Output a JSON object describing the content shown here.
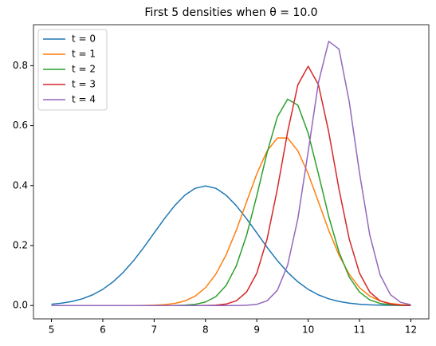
{
  "chart_data": {
    "type": "line",
    "title": "First 5 densities when θ = 10.0",
    "x": [
      5.0,
      5.2,
      5.4,
      5.6,
      5.8,
      6.0,
      6.2,
      6.4,
      6.6,
      6.8,
      7.0,
      7.2,
      7.4,
      7.6,
      7.8,
      8.0,
      8.2,
      8.4,
      8.6,
      8.8,
      9.0,
      9.2,
      9.4,
      9.6,
      9.8,
      10.0,
      10.2,
      10.4,
      10.6,
      10.8,
      11.0,
      11.2,
      11.4,
      11.6,
      11.8,
      12.0
    ],
    "series": [
      {
        "name": "t = 0",
        "color": "#1f77b4",
        "values": [
          0.0044,
          0.0079,
          0.0136,
          0.0224,
          0.0355,
          0.054,
          0.079,
          0.1109,
          0.1497,
          0.1942,
          0.242,
          0.2897,
          0.3332,
          0.3683,
          0.391,
          0.3989,
          0.391,
          0.3683,
          0.3332,
          0.2897,
          0.242,
          0.1942,
          0.1497,
          0.1109,
          0.079,
          0.054,
          0.0355,
          0.0224,
          0.0136,
          0.0079,
          0.0044,
          0.0024,
          0.0012,
          0.0006,
          0.0003,
          0.0001
        ]
      },
      {
        "name": "t = 1",
        "color": "#ff7f0e",
        "values": [
          0,
          0,
          0,
          0,
          0,
          0,
          0,
          0,
          0.0001,
          0.0004,
          0.0011,
          0.0028,
          0.0069,
          0.0153,
          0.0314,
          0.0595,
          0.1041,
          0.1682,
          0.251,
          0.3456,
          0.4394,
          0.5156,
          0.5586,
          0.5586,
          0.5156,
          0.4394,
          0.3456,
          0.251,
          0.1682,
          0.1041,
          0.0595,
          0.0314,
          0.0153,
          0.0069,
          0.0028,
          0.0011
        ]
      },
      {
        "name": "t = 2",
        "color": "#2ca02c",
        "values": [
          0,
          0,
          0,
          0,
          0,
          0,
          0,
          0,
          0,
          0,
          0,
          0.0001,
          0.0003,
          0.0013,
          0.0041,
          0.0116,
          0.0295,
          0.0663,
          0.1322,
          0.2338,
          0.3666,
          0.51,
          0.629,
          0.6884,
          0.6681,
          0.5749,
          0.4389,
          0.2971,
          0.1784,
          0.095,
          0.0449,
          0.0188,
          0.007,
          0.0023,
          0.0007,
          0.0002
        ]
      },
      {
        "name": "t = 3",
        "color": "#d62728",
        "values": [
          0,
          0,
          0,
          0,
          0,
          0,
          0,
          0,
          0,
          0,
          0,
          0,
          0,
          0,
          0,
          0.0003,
          0.0012,
          0.0048,
          0.0158,
          0.0448,
          0.108,
          0.2218,
          0.3884,
          0.5794,
          0.7365,
          0.7979,
          0.7365,
          0.5794,
          0.3884,
          0.2218,
          0.108,
          0.0448,
          0.0158,
          0.0048,
          0.0012,
          0.0003
        ]
      },
      {
        "name": "t = 4",
        "color": "#9467bd",
        "values": [
          0,
          0,
          0,
          0,
          0,
          0,
          0,
          0,
          0,
          0,
          0,
          0,
          0,
          0,
          0,
          0,
          0,
          0,
          0.0001,
          0.0008,
          0.004,
          0.0158,
          0.051,
          0.1345,
          0.2905,
          0.5136,
          0.7437,
          0.8812,
          0.8553,
          0.6796,
          0.4421,
          0.2354,
          0.1027,
          0.0366,
          0.0107,
          0.0026
        ]
      }
    ],
    "xlim": [
      4.65,
      12.35
    ],
    "xticks": [
      5,
      6,
      7,
      8,
      9,
      10,
      11,
      12
    ],
    "ylim": [
      -0.0446,
      0.9366
    ],
    "yticks": [
      {
        "value": 0,
        "label": "0.0"
      },
      {
        "value": 0.2,
        "label": "0.2"
      },
      {
        "value": 0.4,
        "label": "0.4"
      },
      {
        "value": 0.6,
        "label": "0.6"
      },
      {
        "value": 0.8,
        "label": "0.8"
      }
    ],
    "legend": "upper left",
    "grid": false
  }
}
